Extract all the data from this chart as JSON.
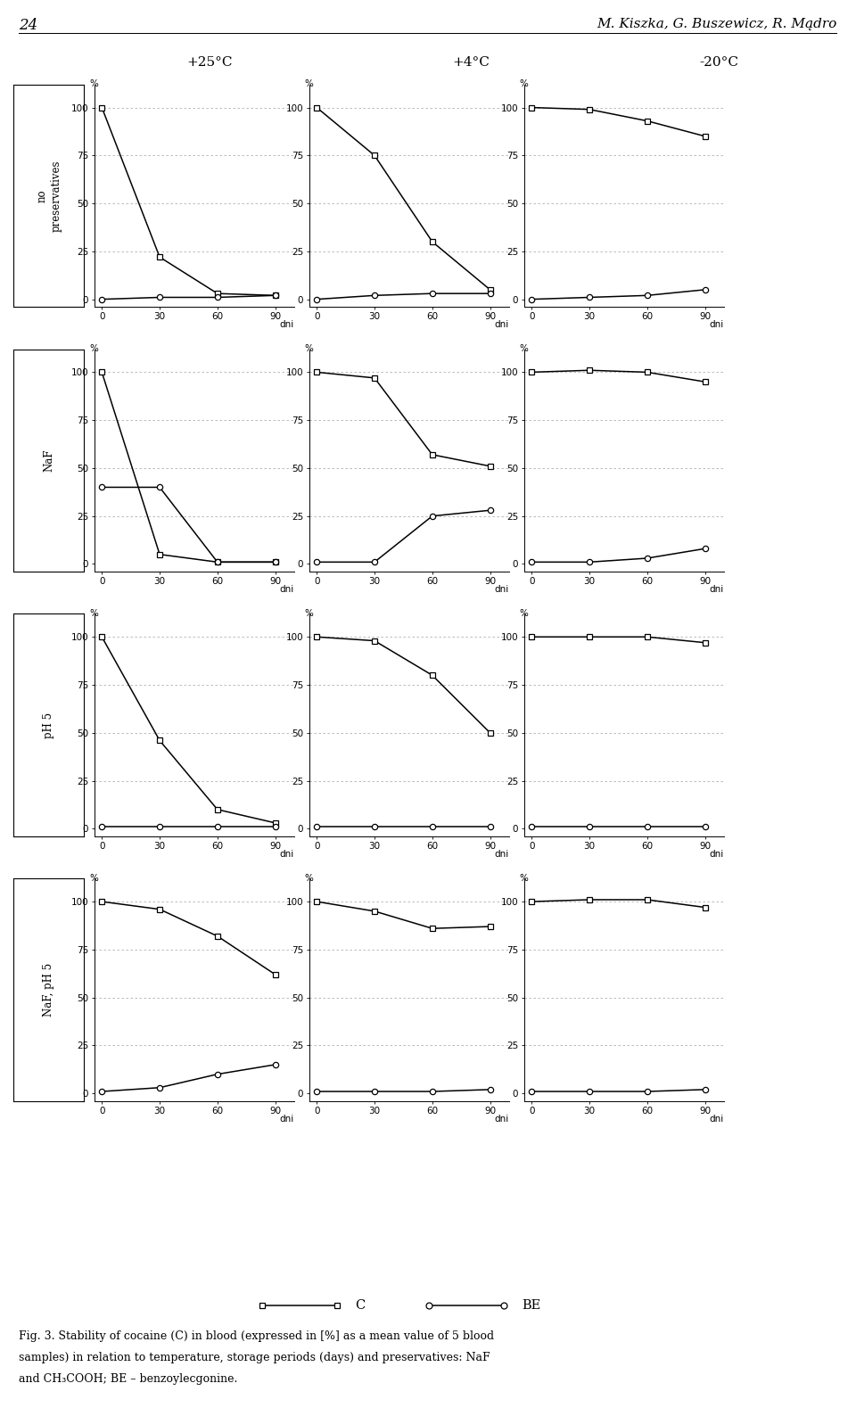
{
  "col_titles": [
    "+25°C",
    "+4°C",
    "-20°C"
  ],
  "row_labels": [
    "no\npreservatives",
    "NaF",
    "pH 5",
    "NaF, pH 5"
  ],
  "row_labels_display": [
    "no\npreservatives",
    "NaF",
    "pH 5",
    "NaF, pH 5"
  ],
  "x": [
    0,
    30,
    60,
    90
  ],
  "C_data": [
    [
      [
        100,
        22,
        3,
        2
      ],
      [
        100,
        75,
        30,
        5
      ],
      [
        100,
        99,
        93,
        85
      ]
    ],
    [
      [
        100,
        5,
        1,
        1
      ],
      [
        100,
        97,
        57,
        51
      ],
      [
        100,
        101,
        100,
        95
      ]
    ],
    [
      [
        100,
        46,
        10,
        3
      ],
      [
        100,
        98,
        80,
        50
      ],
      [
        100,
        100,
        100,
        97
      ]
    ],
    [
      [
        100,
        96,
        82,
        62
      ],
      [
        100,
        95,
        86,
        87
      ],
      [
        100,
        101,
        101,
        97
      ]
    ]
  ],
  "BE_data": [
    [
      [
        0,
        1,
        1,
        2
      ],
      [
        0,
        2,
        3,
        3
      ],
      [
        0,
        1,
        2,
        5
      ]
    ],
    [
      [
        40,
        40,
        1,
        1
      ],
      [
        1,
        1,
        25,
        28
      ],
      [
        1,
        1,
        3,
        8
      ]
    ],
    [
      [
        1,
        1,
        1,
        1
      ],
      [
        1,
        1,
        1,
        1
      ],
      [
        1,
        1,
        1,
        1
      ]
    ],
    [
      [
        1,
        3,
        10,
        15
      ],
      [
        1,
        1,
        1,
        2
      ],
      [
        1,
        1,
        1,
        2
      ]
    ]
  ],
  "page_num": "24",
  "title_text": "M. Kiszka, G. Buszewicz, R. Mądro",
  "fig_caption_line1": "Fig. 3. Stability of cocaine (C) in blood (expressed in [%] as a mean value of 5 blood",
  "fig_caption_line2": "samples) in relation to temperature, storage periods (days) and preservatives: NaF",
  "fig_caption_line3": "and CH₃COOH; BE – benzoylecgonine."
}
